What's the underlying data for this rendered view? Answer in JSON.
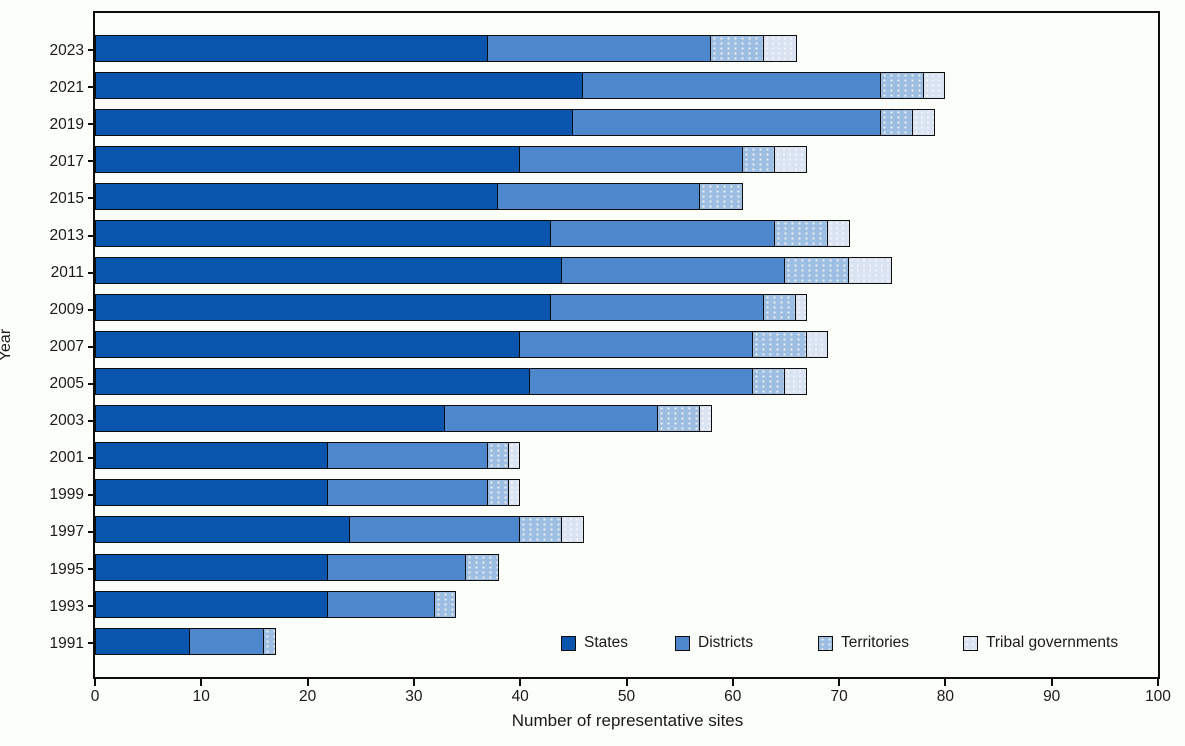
{
  "colors": {
    "background": "#FCFEFA",
    "frame": "#0D0D0D",
    "text": "#1A1A1A"
  },
  "chart_data": {
    "type": "bar",
    "orientation": "horizontal",
    "stacked": true,
    "title": "",
    "xlabel": "Number of representative sites",
    "ylabel": "Year",
    "xlim": [
      0,
      100
    ],
    "xticks": [
      "0",
      "10",
      "20",
      "30",
      "40",
      "50",
      "60",
      "70",
      "80",
      "90",
      "100"
    ],
    "grid": false,
    "legend_position": "inside-bottom-right",
    "categories": [
      "2023",
      "2021",
      "2019",
      "2017",
      "2015",
      "2013",
      "2011",
      "2009",
      "2007",
      "2005",
      "2003",
      "2001",
      "1999",
      "1997",
      "1995",
      "1993",
      "1991"
    ],
    "series": [
      {
        "name": "States",
        "color": "#0A55AD",
        "values": [
          37,
          46,
          45,
          40,
          38,
          43,
          44,
          43,
          40,
          41,
          33,
          22,
          22,
          24,
          22,
          22,
          9
        ]
      },
      {
        "name": "Districts",
        "color": "#4F87CC",
        "values": [
          21,
          28,
          29,
          21,
          19,
          21,
          21,
          20,
          22,
          21,
          20,
          15,
          15,
          16,
          13,
          10,
          7
        ]
      },
      {
        "name": "Territories",
        "color": "#9DBEE3",
        "values": [
          5,
          4,
          3,
          3,
          4,
          5,
          6,
          3,
          5,
          3,
          4,
          2,
          2,
          4,
          3,
          2,
          1
        ]
      },
      {
        "name": "Tribal governments",
        "color": "#DAE3F2",
        "values": [
          3,
          2,
          2,
          3,
          0,
          2,
          4,
          1,
          2,
          2,
          1,
          1,
          1,
          2,
          0,
          0,
          0
        ]
      }
    ]
  }
}
